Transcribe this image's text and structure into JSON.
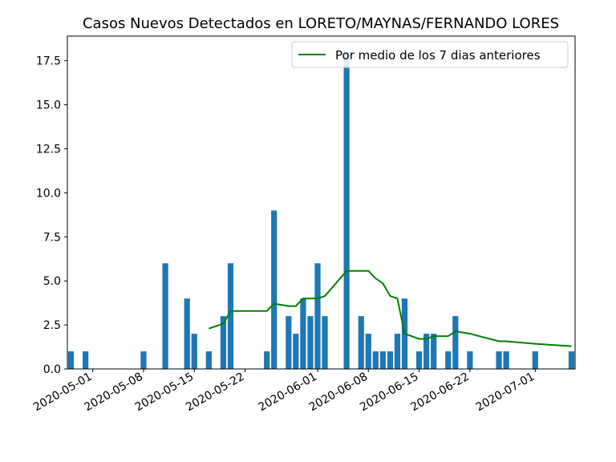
{
  "chart_data": {
    "type": "bar",
    "title": "Casos Nuevos Detectados en LORETO/MAYNAS/FERNANDO LORES",
    "xlabel": "",
    "ylabel": "",
    "x_range": [
      "2020-04-28",
      "2020-07-06"
    ],
    "ylim": [
      0,
      18.9
    ],
    "grid": false,
    "legend_position": "top-right",
    "bar_color": "#1f77b4",
    "line_color": "#008000",
    "y_ticks": [
      "0.0",
      "2.5",
      "5.0",
      "7.5",
      "10.0",
      "12.5",
      "15.0",
      "17.5"
    ],
    "x_ticks": [
      "2020-05-01",
      "2020-05-08",
      "2020-05-15",
      "2020-05-22",
      "2020-06-01",
      "2020-06-08",
      "2020-06-15",
      "2020-06-22",
      "2020-07-01"
    ],
    "series": [
      {
        "name": "",
        "kind": "bar",
        "x": [
          "2020-04-28",
          "2020-04-30",
          "2020-05-08",
          "2020-05-11",
          "2020-05-14",
          "2020-05-15",
          "2020-05-17",
          "2020-05-19",
          "2020-05-20",
          "2020-05-25",
          "2020-05-26",
          "2020-05-28",
          "2020-05-29",
          "2020-05-30",
          "2020-05-31",
          "2020-06-01",
          "2020-06-02",
          "2020-06-05",
          "2020-06-07",
          "2020-06-08",
          "2020-06-09",
          "2020-06-10",
          "2020-06-11",
          "2020-06-12",
          "2020-06-13",
          "2020-06-15",
          "2020-06-16",
          "2020-06-17",
          "2020-06-19",
          "2020-06-20",
          "2020-06-22",
          "2020-06-26",
          "2020-06-27",
          "2020-07-01",
          "2020-07-06"
        ],
        "values": [
          1,
          1,
          1,
          6,
          4,
          2,
          1,
          3,
          6,
          1,
          9,
          3,
          2,
          4,
          3,
          6,
          3,
          18,
          3,
          2,
          1,
          1,
          1,
          2,
          4,
          1,
          2,
          2,
          1,
          3,
          1,
          1,
          1,
          1,
          1
        ]
      },
      {
        "name": "Por medio de los 7 dias anteriores",
        "kind": "line",
        "x": [
          "2020-05-17",
          "2020-05-19",
          "2020-05-20",
          "2020-05-25",
          "2020-05-26",
          "2020-05-28",
          "2020-05-29",
          "2020-05-30",
          "2020-05-31",
          "2020-06-01",
          "2020-06-02",
          "2020-06-05",
          "2020-06-07",
          "2020-06-08",
          "2020-06-09",
          "2020-06-10",
          "2020-06-11",
          "2020-06-12",
          "2020-06-13",
          "2020-06-15",
          "2020-06-16",
          "2020-06-17",
          "2020-06-19",
          "2020-06-20",
          "2020-06-22",
          "2020-06-26",
          "2020-06-27",
          "2020-07-01",
          "2020-07-06"
        ],
        "values": [
          2.29,
          2.57,
          3.29,
          3.29,
          3.71,
          3.57,
          3.57,
          4.0,
          4.0,
          4.0,
          4.14,
          5.57,
          5.57,
          5.57,
          5.14,
          4.86,
          4.14,
          4.0,
          2.0,
          1.71,
          1.71,
          1.86,
          1.86,
          2.14,
          2.0,
          1.57,
          1.57,
          1.43,
          1.29
        ]
      }
    ]
  }
}
